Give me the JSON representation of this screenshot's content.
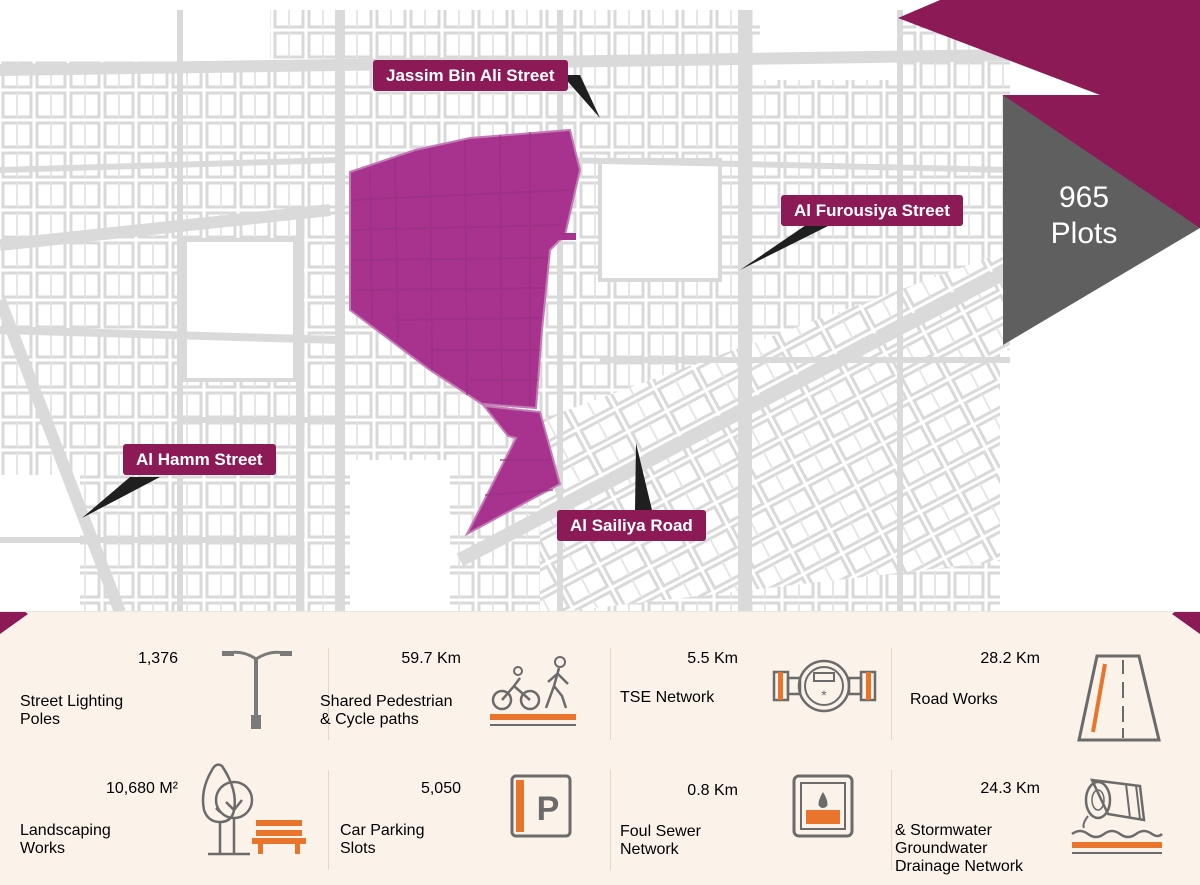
{
  "map": {
    "streets": {
      "jassim": "Jassim Bin Ali Street",
      "furousiya": "Al Furousiya Street",
      "hamm": "Al Hamm Street",
      "sailiya": "Al Sailiya Road"
    },
    "plots": {
      "count": "965",
      "label": "Plots"
    },
    "colors": {
      "district": "#a8338e",
      "accent": "#8b1a57",
      "grey": "#5f5f5f"
    }
  },
  "stats": [
    {
      "value": "1,376",
      "unit": "",
      "label": [
        "Street Lighting",
        "Poles"
      ],
      "icon": "street-light-icon"
    },
    {
      "value": "59.7",
      "unit": "Km",
      "label": [
        "Shared Pedestrian",
        "& Cycle paths"
      ],
      "icon": "cycle-pedestrian-icon"
    },
    {
      "value": "5.5",
      "unit": "Km",
      "label": [
        "TSE Network"
      ],
      "icon": "water-meter-icon"
    },
    {
      "value": "28.2",
      "unit": "Km",
      "label": [
        "Road Works"
      ],
      "icon": "road-icon"
    },
    {
      "value": "10,680",
      "unit": "M²",
      "label": [
        "Landscaping",
        "Works"
      ],
      "icon": "tree-bench-icon"
    },
    {
      "value": "5,050",
      "unit": "",
      "label": [
        "Car Parking",
        "Slots"
      ],
      "icon": "parking-icon"
    },
    {
      "value": "0.8",
      "unit": "Km",
      "label": [
        "Foul Sewer",
        "Network"
      ],
      "icon": "sewer-icon"
    },
    {
      "value": "24.3",
      "unit": "Km",
      "label": [
        "& Stormwater",
        "Groundwater",
        "Drainage Network"
      ],
      "icon": "drainage-pipe-icon"
    }
  ]
}
